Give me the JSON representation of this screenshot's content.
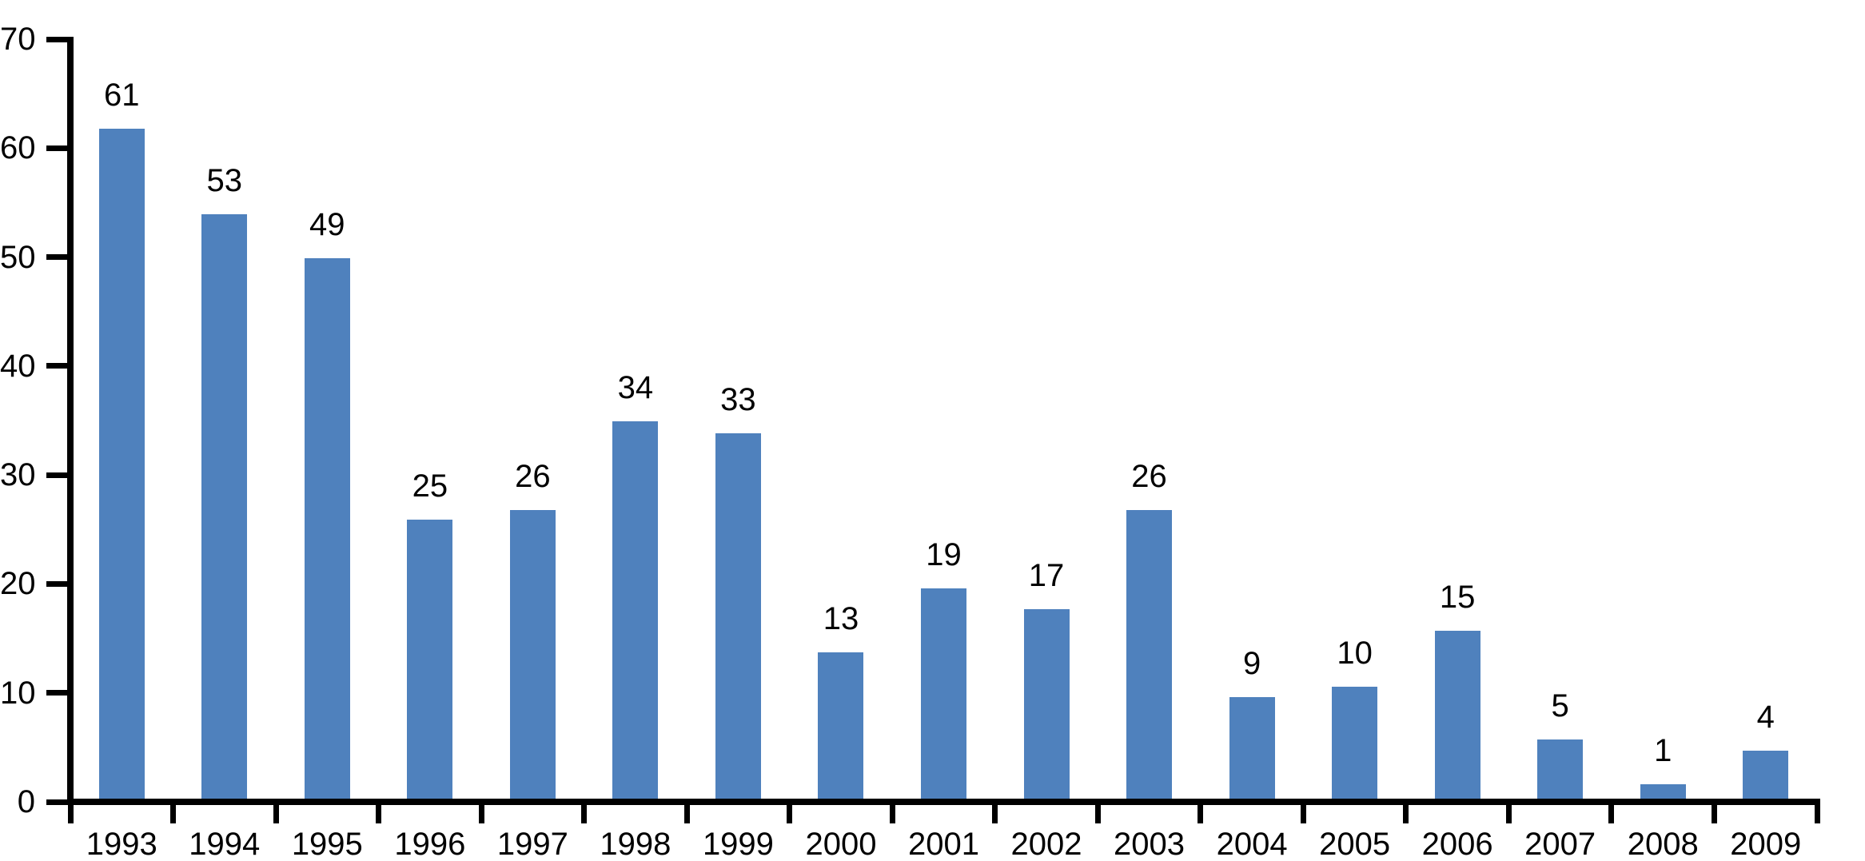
{
  "chart_data": {
    "type": "bar",
    "title": "",
    "xlabel": "",
    "ylabel": "",
    "categories": [
      "1993",
      "1994",
      "1995",
      "1996",
      "1997",
      "1998",
      "1999",
      "2000",
      "2001",
      "2002",
      "2003",
      "2004",
      "2005",
      "2006",
      "2007",
      "2008",
      "2009"
    ],
    "values": [
      61,
      53,
      49,
      25,
      26,
      34,
      33,
      13,
      19,
      17,
      26,
      9,
      10,
      15,
      5,
      1,
      4
    ],
    "data_labels": [
      "61",
      "53",
      "49",
      "25",
      "26",
      "34",
      "33",
      "13",
      "19",
      "17",
      "26",
      "9",
      "10",
      "15",
      "5",
      "1",
      "4"
    ],
    "bar_heights_visual": [
      61.8,
      53.9,
      49.9,
      25.9,
      26.8,
      34.9,
      33.8,
      13.7,
      19.6,
      17.7,
      26.8,
      9.6,
      10.6,
      15.7,
      5.7,
      1.6,
      4.7
    ],
    "ylim": [
      0,
      70
    ],
    "y_ticks": [
      "0",
      "10",
      "20",
      "30",
      "40",
      "50",
      "60",
      "70"
    ],
    "grid": "off",
    "legend": "none",
    "bar_color": "#4f81bd",
    "axis_color": "#000000",
    "text_color": "#000000",
    "background_color": "#ffffff"
  }
}
